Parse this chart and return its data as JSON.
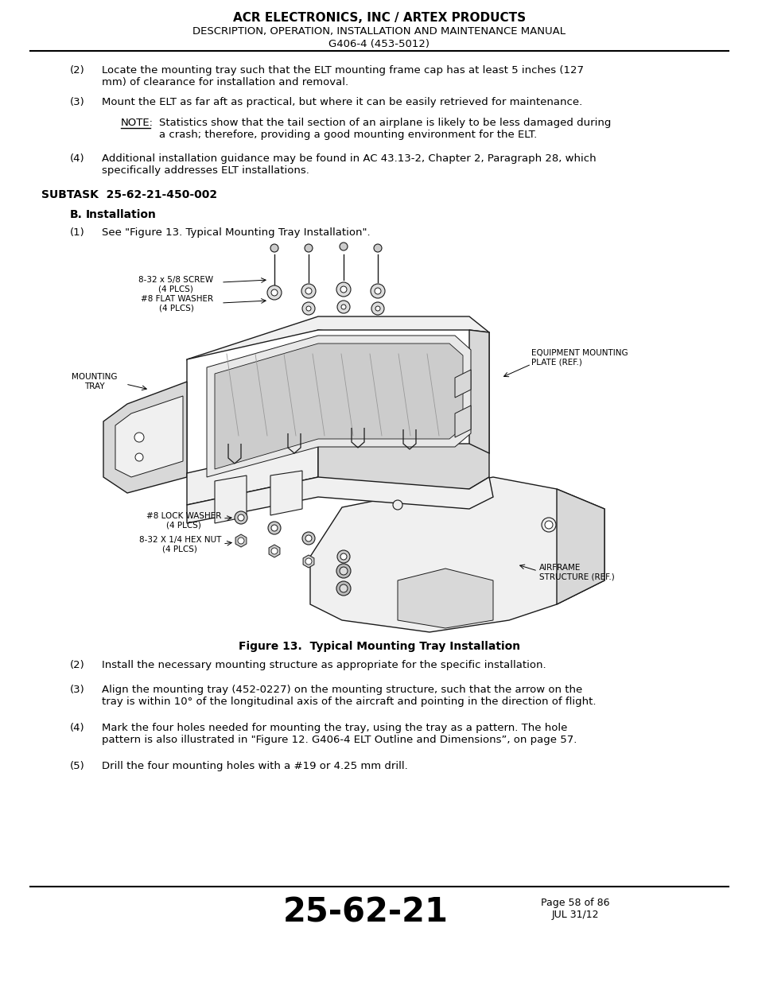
{
  "header_line1": "ACR ELECTRONICS, INC / ARTEX PRODUCTS",
  "header_line2": "DESCRIPTION, OPERATION, INSTALLATION AND MAINTENANCE MANUAL",
  "header_line3": "G406-4 (453-5012)",
  "subtask": "SUBTASK  25-62-21-450-002",
  "section_b_label": "B.",
  "section_b_title": "Installation",
  "item1_label": "(1)",
  "item1_text": "See \"Figure 13. Typical Mounting Tray Installation\".",
  "figure_caption": "Figure 13.  Typical Mounting Tray Installation",
  "items_after": [
    {
      "label": "(2)",
      "text": "Install the necessary mounting structure as appropriate for the specific installation."
    },
    {
      "label": "(3)",
      "text": "Align the mounting tray (452-0227) on the mounting structure, such that the arrow on the\ntray is within 10° of the longitudinal axis of the aircraft and pointing in the direction of flight."
    },
    {
      "label": "(4)",
      "text": "Mark the four holes needed for mounting the tray, using the tray as a pattern. The hole\npattern is also illustrated in \"Figure 12. G406-4 ELT Outline and Dimensions”, on page 57."
    },
    {
      "label": "(5)",
      "text": "Drill the four mounting holes with a #19 or 4.25 mm drill."
    }
  ],
  "footer_page_num": "25-62-21",
  "footer_page_info": "Page 58 of 86\nJUL 31/12",
  "bg_color": "#ffffff",
  "text_color": "#000000",
  "lc": "#1a1a1a"
}
